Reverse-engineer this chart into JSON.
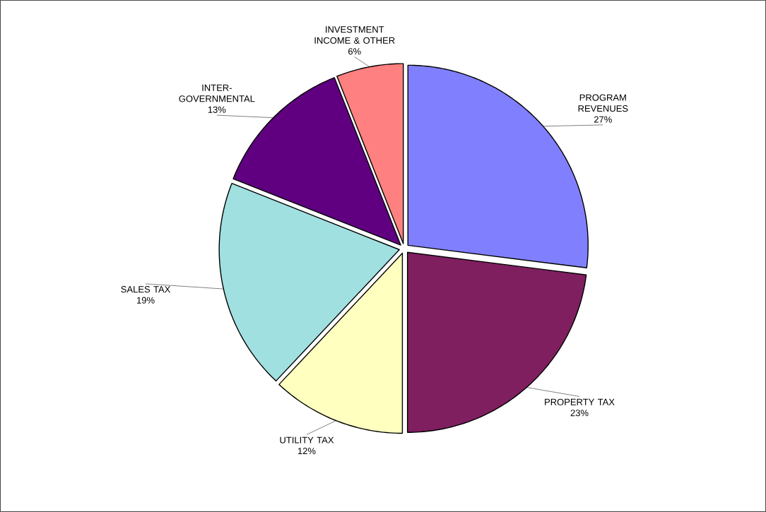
{
  "chart_data": {
    "type": "pie",
    "categories": [
      "PROGRAM REVENUES",
      "PROPERTY TAX",
      "UTILITY TAX",
      "SALES TAX",
      "INTER-GOVERNMENTAL",
      "INVESTMENT INCOME & OTHER"
    ],
    "values": [
      27,
      23,
      12,
      19,
      13,
      6
    ],
    "value_labels": [
      "27%",
      "23%",
      "12%",
      "19%",
      "13%",
      "6%"
    ],
    "colors": [
      "#8080ff",
      "#7f1f5f",
      "#ffffc0",
      "#a0e0e0",
      "#600080",
      "#ff8080"
    ],
    "legend": false
  }
}
